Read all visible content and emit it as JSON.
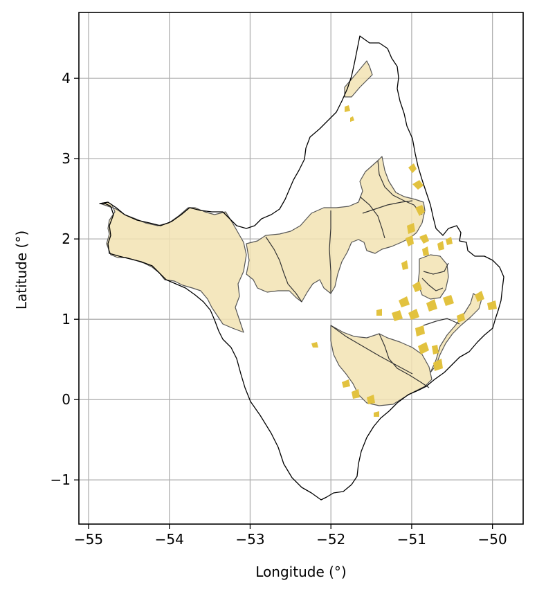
{
  "axes": {
    "xlabel": "Longitude (°)",
    "ylabel": "Latitude (°)",
    "xlim": [
      -55.12,
      -49.62
    ],
    "ylim": [
      -1.55,
      4.82
    ],
    "xticks": [
      -55,
      -54,
      -53,
      -52,
      -51,
      -50
    ],
    "yticks": [
      -1,
      0,
      1,
      2,
      3,
      4
    ],
    "xtick_labels": [
      "−55",
      "−54",
      "−53",
      "−52",
      "−51",
      "−50"
    ],
    "ytick_labels": [
      "−1",
      "0",
      "1",
      "2",
      "3",
      "4"
    ],
    "grid": true
  },
  "colors": {
    "fill": "#f2e3b3",
    "patch": "#e2c23f",
    "outline": "#000000",
    "border": "#555555",
    "grid": "#b0b0b0"
  }
}
